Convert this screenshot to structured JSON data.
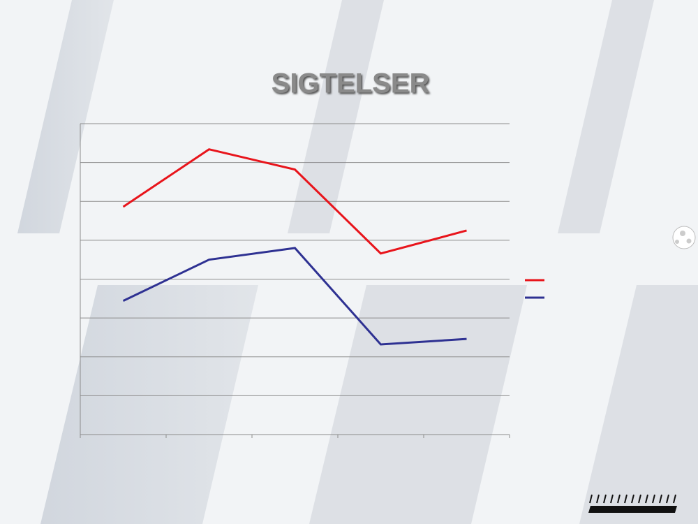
{
  "chart_data": {
    "type": "line",
    "title": "SIGTELSER",
    "categories": [
      null,
      null,
      null,
      null,
      null
    ],
    "series": [
      {
        "color": "#e8141b",
        "values": [
          5.86,
          7.34,
          6.82,
          4.66,
          5.25
        ]
      },
      {
        "color": "#2e3192",
        "values": [
          3.44,
          4.5,
          4.8,
          2.32,
          2.46
        ]
      }
    ],
    "ylim": [
      0,
      8
    ],
    "yticks": [
      0,
      1,
      2,
      3,
      4,
      5,
      6,
      7,
      8
    ],
    "grid": true,
    "legend": "right"
  }
}
